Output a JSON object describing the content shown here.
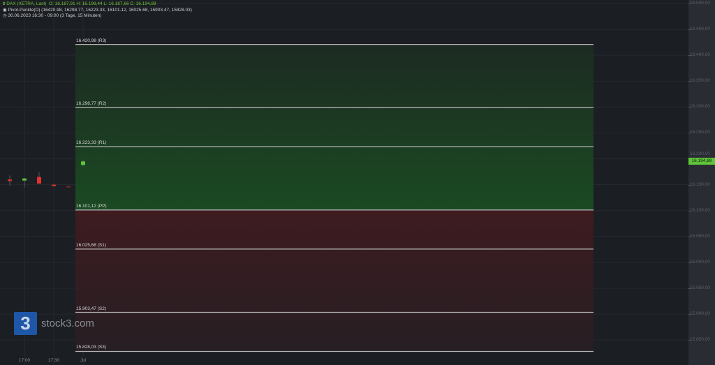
{
  "legend": {
    "instrument": "DAX (XETRA, Last)",
    "ohlc": "O: 16.187,91  H: 16.198,44  L: 16.187,66  C: 16.194,88",
    "indicator": "Pivot-Punkte(D)  (16420.98,  16298.77,  16223.33,  16101.12,  16025.68,  15903.47,  15828.03)",
    "period": "30.06.2023 16:30 - 09:00   (3 Tage, 15 Minuten)"
  },
  "colors": {
    "up": "#5fc43a",
    "down": "#e0322f",
    "pivot_zone_up": "#1b4a22",
    "pivot_zone_down": "#3e1c20",
    "line": "#b8b8b8"
  },
  "axis": {
    "ticks": [
      16500,
      16450,
      16400,
      16350,
      16300,
      16250,
      16200,
      16150,
      16100,
      16050,
      16000,
      15950,
      15900,
      15850
    ],
    "tick_labels": [
      "16.500,00",
      "16.450,00",
      "16.400,00",
      "16.350,00",
      "16.300,00",
      "16.250,00",
      "16.200,00",
      "16.150,00",
      "16.100,00",
      "16.050,00",
      "16.000,00",
      "15.950,00",
      "15.900,00",
      "15.850,00"
    ],
    "last_price": 16194.88,
    "last_price_label": "16.194,88"
  },
  "x_labels": [
    {
      "t": 0,
      "label": "17:00"
    },
    {
      "t": 2,
      "label": "17:30"
    },
    {
      "t": 4,
      "label": "Jul"
    }
  ],
  "levels": [
    {
      "value": 16420.98,
      "label": "16.420,98 (R3)"
    },
    {
      "value": 16298.77,
      "label": "16.298,77 (R2)"
    },
    {
      "value": 16223.33,
      "label": "16.223,33 (R1)"
    },
    {
      "value": 16101.12,
      "label": "16.101,12 (PP)"
    },
    {
      "value": 16025.68,
      "label": "16.025,68 (S1)"
    },
    {
      "value": 15903.47,
      "label": "15.903,47 (S2)"
    },
    {
      "value": 15828.03,
      "label": "15.828,03 (S3)"
    }
  ],
  "candles": [
    {
      "o": 16160,
      "h": 16168,
      "l": 16148,
      "c": 16157
    },
    {
      "o": 16158,
      "h": 16163,
      "l": 16145,
      "c": 16162
    },
    {
      "o": 16165,
      "h": 16174,
      "l": 16152,
      "c": 16152
    },
    {
      "o": 16150,
      "h": 16151,
      "l": 16147,
      "c": 16148
    },
    {
      "o": 16147,
      "h": 16148,
      "l": 16146,
      "c": 16146
    },
    {
      "o": 16187.91,
      "h": 16198.44,
      "l": 16187.66,
      "c": 16194.88
    }
  ],
  "logo": {
    "mark": "3",
    "text": "stock3.com"
  }
}
